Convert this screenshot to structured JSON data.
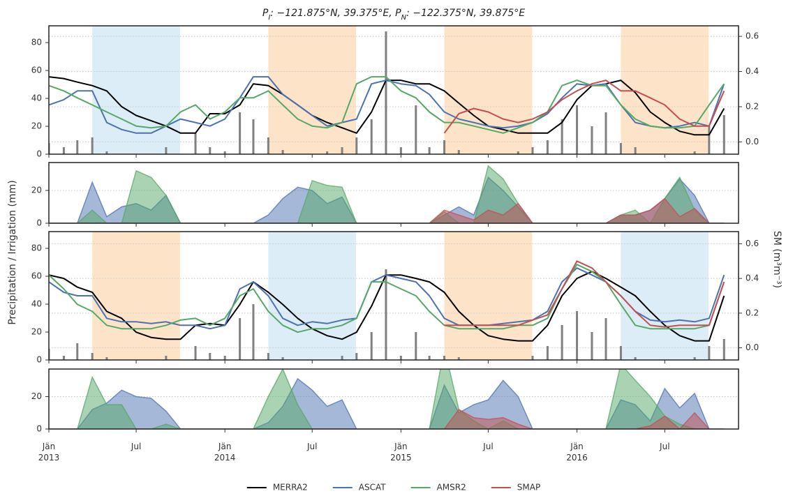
{
  "figure": {
    "title": "P_I: −121.875°N, 39.375°E, P_N: −122.375°N, 39.875°E",
    "ylabel": "Precipitation / Irrigation (mm)",
    "y2label": "SM (m³m⁻³)",
    "x": [
      "2013-01",
      "2013-02",
      "2013-03",
      "2013-04",
      "2013-05",
      "2013-06",
      "2013-07",
      "2013-08",
      "2013-09",
      "2013-10",
      "2013-11",
      "2013-12",
      "2014-01",
      "2014-02",
      "2014-03",
      "2014-04",
      "2014-05",
      "2014-06",
      "2014-07",
      "2014-08",
      "2014-09",
      "2014-10",
      "2014-11",
      "2014-12",
      "2015-01",
      "2015-02",
      "2015-03",
      "2015-04",
      "2015-05",
      "2015-06",
      "2015-07",
      "2015-08",
      "2015-09",
      "2015-10",
      "2015-11",
      "2015-12",
      "2016-01",
      "2016-02",
      "2016-03",
      "2016-04",
      "2016-05",
      "2016-06",
      "2016-07",
      "2016-08",
      "2016-09",
      "2016-10",
      "2016-11"
    ],
    "xlim": [
      "2013-01-01",
      "2016-12-01"
    ],
    "xticks": [
      {
        "value": "2013-01",
        "label": "Jän\n2013"
      },
      {
        "value": "2013-07",
        "label": "Jul"
      },
      {
        "value": "2014-01",
        "label": "Jän\n2014"
      },
      {
        "value": "2014-07",
        "label": "Jul"
      },
      {
        "value": "2015-01",
        "label": "Jän\n2015"
      },
      {
        "value": "2015-07",
        "label": "Jul"
      },
      {
        "value": "2016-01",
        "label": "Jän\n2016"
      },
      {
        "value": "2016-07",
        "label": "Jul"
      }
    ]
  },
  "chart_data": [
    {
      "type": "line",
      "ylim": [
        0,
        92
      ],
      "yticks": [
        0,
        20,
        40,
        60,
        80
      ],
      "y2lim": [
        -0.07,
        0.66
      ],
      "y2ticks": [
        {
          "value": 0,
          "label": "0.0"
        },
        0.2,
        0.4,
        0.6
      ],
      "grid": "y2",
      "spans": [
        {
          "start": "2013-04-01",
          "end": "2013-09-30",
          "color": "#dcedf7"
        },
        {
          "start": "2014-04-01",
          "end": "2014-09-30",
          "color": "#fde4c8"
        },
        {
          "start": "2015-04-01",
          "end": "2015-09-30",
          "color": "#fde4c8"
        },
        {
          "start": "2016-04-01",
          "end": "2016-09-30",
          "color": "#fde4c8"
        }
      ],
      "precipitation": {
        "color": "#808080",
        "values": [
          8,
          5,
          10,
          12,
          2,
          0,
          0,
          0,
          5,
          0,
          15,
          5,
          2,
          30,
          25,
          12,
          3,
          0,
          0,
          2,
          5,
          12,
          25,
          88,
          5,
          35,
          5,
          10,
          3,
          0,
          0,
          0,
          2,
          5,
          10,
          25,
          35,
          20,
          30,
          8,
          5,
          0,
          0,
          0,
          2,
          20,
          28
        ]
      },
      "series": [
        {
          "name": "MERRA2",
          "color": "#000000",
          "axis": "y2",
          "values": [
            0.37,
            0.36,
            0.34,
            0.32,
            0.29,
            0.2,
            0.15,
            0.12,
            0.09,
            0.05,
            0.05,
            0.16,
            0.16,
            0.21,
            0.33,
            0.32,
            0.27,
            0.21,
            0.15,
            0.11,
            0.08,
            0.05,
            0.17,
            0.35,
            0.35,
            0.33,
            0.33,
            0.29,
            0.22,
            0.15,
            0.09,
            0.07,
            0.05,
            0.05,
            0.05,
            0.11,
            0.24,
            0.32,
            0.33,
            0.35,
            0.28,
            0.17,
            0.11,
            0.06,
            0.04,
            0.04,
            0.19
          ]
        },
        {
          "name": "ASCAT",
          "color": "#4c72b0",
          "axis": "y2",
          "values": [
            0.21,
            0.24,
            0.29,
            0.29,
            0.11,
            0.07,
            0.05,
            0.05,
            0.09,
            0.13,
            0.11,
            0.09,
            0.13,
            0.25,
            0.37,
            0.37,
            0.27,
            0.21,
            0.15,
            0.09,
            0.11,
            0.13,
            0.33,
            0.35,
            0.33,
            0.32,
            0.27,
            0.17,
            0.13,
            0.11,
            0.09,
            0.08,
            0.09,
            0.11,
            0.16,
            0.25,
            0.33,
            0.32,
            0.33,
            0.21,
            0.11,
            0.09,
            0.08,
            0.09,
            0.11,
            0.09,
            0.33
          ]
        },
        {
          "name": "AMSR2",
          "color": "#55a868",
          "axis": "y2",
          "values": [
            0.32,
            0.29,
            0.25,
            0.21,
            0.17,
            0.13,
            0.09,
            0.08,
            0.09,
            0.17,
            0.21,
            0.13,
            0.17,
            0.25,
            0.25,
            0.29,
            0.21,
            0.13,
            0.09,
            0.08,
            0.11,
            0.33,
            0.37,
            0.37,
            0.29,
            0.25,
            0.17,
            0.11,
            0.11,
            0.09,
            0.07,
            0.05,
            0.08,
            0.11,
            0.17,
            0.32,
            0.35,
            0.32,
            0.32,
            0.21,
            0.13,
            0.09,
            0.08,
            0.08,
            0.09,
            0.21,
            0.33
          ]
        },
        {
          "name": "SMAP",
          "color": "#c44e52",
          "axis": "y2",
          "values": [
            null,
            null,
            null,
            null,
            null,
            null,
            null,
            null,
            null,
            null,
            null,
            null,
            null,
            null,
            null,
            null,
            null,
            null,
            null,
            null,
            null,
            null,
            null,
            null,
            null,
            null,
            null,
            0.05,
            0.16,
            0.19,
            0.17,
            0.13,
            0.11,
            0.13,
            0.17,
            0.24,
            0.29,
            0.33,
            0.35,
            0.29,
            0.29,
            0.25,
            0.21,
            0.13,
            0.09,
            0.09,
            0.29
          ]
        }
      ]
    },
    {
      "type": "area",
      "ylim": [
        0,
        37
      ],
      "yticks": [
        0,
        20
      ],
      "grid": "y",
      "series": [
        {
          "name": "ASCAT",
          "color": "#4c72b0",
          "values": [
            0,
            0,
            0,
            25,
            4,
            10,
            12,
            8,
            17,
            0,
            0,
            0,
            0,
            0,
            0,
            5,
            15,
            22,
            20,
            12,
            16,
            0,
            0,
            0,
            0,
            0,
            0,
            5,
            10,
            5,
            28,
            20,
            10,
            0,
            0,
            0,
            0,
            0,
            0,
            5,
            5,
            8,
            15,
            27,
            17,
            0,
            0
          ]
        },
        {
          "name": "AMSR2",
          "color": "#55a868",
          "values": [
            0,
            0,
            0,
            8,
            0,
            0,
            32,
            28,
            17,
            0,
            0,
            0,
            0,
            0,
            0,
            0,
            0,
            0,
            26,
            23,
            22,
            0,
            0,
            0,
            0,
            0,
            0,
            7,
            0,
            0,
            35,
            27,
            12,
            0,
            0,
            0,
            0,
            0,
            0,
            5,
            8,
            0,
            15,
            28,
            8,
            0,
            0
          ]
        },
        {
          "name": "SMAP",
          "color": "#c44e52",
          "values": [
            0,
            0,
            0,
            0,
            0,
            0,
            0,
            0,
            0,
            0,
            0,
            0,
            0,
            0,
            0,
            0,
            0,
            0,
            0,
            0,
            0,
            0,
            0,
            0,
            0,
            0,
            0,
            8,
            5,
            2,
            8,
            5,
            12,
            0,
            0,
            0,
            0,
            0,
            0,
            5,
            5,
            8,
            15,
            4,
            9,
            0,
            0
          ]
        }
      ]
    },
    {
      "type": "line",
      "ylim": [
        0,
        92
      ],
      "yticks": [
        0,
        20,
        40,
        60,
        80
      ],
      "y2lim": [
        -0.07,
        0.67
      ],
      "y2ticks": [
        {
          "value": 0,
          "label": "0.0"
        },
        0.2,
        0.4,
        0.6
      ],
      "grid": "y2",
      "spans": [
        {
          "start": "2013-04-01",
          "end": "2013-09-30",
          "color": "#fde4c8"
        },
        {
          "start": "2014-04-01",
          "end": "2014-09-30",
          "color": "#dcedf7"
        },
        {
          "start": "2015-04-01",
          "end": "2015-09-30",
          "color": "#fde4c8"
        },
        {
          "start": "2016-04-01",
          "end": "2016-09-30",
          "color": "#dcedf7"
        }
      ],
      "precipitation": {
        "color": "#808080",
        "values": [
          8,
          3,
          12,
          5,
          2,
          0,
          0,
          0,
          3,
          0,
          10,
          5,
          3,
          30,
          40,
          5,
          2,
          0,
          0,
          0,
          3,
          5,
          20,
          65,
          3,
          20,
          3,
          3,
          2,
          0,
          0,
          0,
          0,
          3,
          10,
          25,
          35,
          20,
          30,
          10,
          2,
          0,
          0,
          0,
          2,
          10,
          15
        ]
      },
      "series": [
        {
          "name": "MERRA2",
          "color": "#000000",
          "axis": "y2",
          "values": [
            0.42,
            0.4,
            0.35,
            0.32,
            0.21,
            0.17,
            0.09,
            0.06,
            0.05,
            0.05,
            0.13,
            0.14,
            0.13,
            0.25,
            0.38,
            0.32,
            0.25,
            0.17,
            0.11,
            0.07,
            0.05,
            0.09,
            0.24,
            0.42,
            0.42,
            0.4,
            0.38,
            0.32,
            0.21,
            0.13,
            0.07,
            0.05,
            0.04,
            0.04,
            0.13,
            0.3,
            0.4,
            0.44,
            0.4,
            0.35,
            0.3,
            0.21,
            0.13,
            0.07,
            0.04,
            0.04,
            0.3
          ]
        },
        {
          "name": "ASCAT",
          "color": "#4c72b0",
          "axis": "y2",
          "values": [
            0.38,
            0.32,
            0.3,
            0.3,
            0.17,
            0.15,
            0.15,
            0.14,
            0.15,
            0.13,
            0.13,
            0.11,
            0.13,
            0.34,
            0.38,
            0.3,
            0.17,
            0.13,
            0.15,
            0.14,
            0.16,
            0.17,
            0.38,
            0.42,
            0.4,
            0.38,
            0.3,
            0.17,
            0.13,
            0.13,
            0.13,
            0.14,
            0.15,
            0.16,
            0.21,
            0.38,
            0.46,
            0.42,
            0.38,
            0.3,
            0.21,
            0.16,
            0.15,
            0.16,
            0.15,
            0.17,
            0.42
          ]
        },
        {
          "name": "AMSR2",
          "color": "#55a868",
          "axis": "y2",
          "values": [
            0.42,
            0.34,
            0.25,
            0.21,
            0.13,
            0.11,
            0.11,
            0.11,
            0.13,
            0.16,
            0.17,
            0.13,
            0.17,
            0.3,
            0.34,
            0.21,
            0.13,
            0.09,
            0.11,
            0.11,
            0.13,
            0.17,
            0.38,
            0.38,
            0.34,
            0.3,
            0.21,
            0.13,
            0.11,
            0.11,
            0.11,
            0.11,
            0.13,
            0.13,
            0.17,
            0.34,
            0.48,
            0.44,
            0.38,
            0.25,
            0.13,
            0.11,
            0.11,
            0.11,
            0.11,
            0.13,
            0.38
          ]
        },
        {
          "name": "SMAP",
          "color": "#c44e52",
          "axis": "y2",
          "values": [
            null,
            null,
            null,
            null,
            null,
            null,
            null,
            null,
            null,
            null,
            null,
            null,
            null,
            null,
            null,
            null,
            null,
            null,
            null,
            null,
            null,
            null,
            null,
            null,
            null,
            null,
            null,
            0.13,
            0.13,
            0.13,
            0.13,
            0.13,
            0.13,
            0.16,
            0.19,
            0.34,
            0.5,
            0.46,
            0.38,
            0.3,
            0.21,
            0.13,
            0.12,
            0.13,
            0.13,
            0.13,
            0.38
          ]
        }
      ]
    },
    {
      "type": "area",
      "ylim": [
        0,
        37
      ],
      "yticks": [
        0,
        20
      ],
      "grid": "y",
      "series": [
        {
          "name": "ASCAT",
          "color": "#4c72b0",
          "values": [
            0,
            0,
            0,
            12,
            16,
            24,
            20,
            19,
            11,
            0,
            0,
            0,
            0,
            0,
            0,
            4,
            14,
            31,
            24,
            14,
            18,
            0,
            0,
            0,
            0,
            0,
            0,
            27,
            10,
            15,
            18,
            30,
            20,
            0,
            0,
            0,
            0,
            0,
            0,
            18,
            15,
            5,
            25,
            13,
            22,
            0,
            0
          ]
        },
        {
          "name": "AMSR2",
          "color": "#55a868",
          "values": [
            0,
            0,
            0,
            32,
            15,
            15,
            0,
            0,
            3,
            0,
            0,
            0,
            0,
            0,
            0,
            20,
            37,
            15,
            0,
            0,
            0,
            0,
            0,
            0,
            0,
            0,
            0,
            50,
            12,
            5,
            0,
            5,
            0,
            0,
            0,
            0,
            0,
            0,
            0,
            40,
            30,
            20,
            8,
            3,
            0,
            0,
            0
          ]
        },
        {
          "name": "SMAP",
          "color": "#c44e52",
          "values": [
            0,
            0,
            0,
            0,
            0,
            0,
            0,
            0,
            0,
            0,
            0,
            0,
            0,
            0,
            0,
            0,
            0,
            0,
            0,
            0,
            0,
            0,
            0,
            0,
            0,
            0,
            0,
            0,
            12,
            7,
            6,
            7,
            3,
            0,
            0,
            0,
            0,
            0,
            0,
            0,
            0,
            2,
            8,
            0,
            10,
            0,
            0
          ]
        }
      ]
    }
  ]
}
